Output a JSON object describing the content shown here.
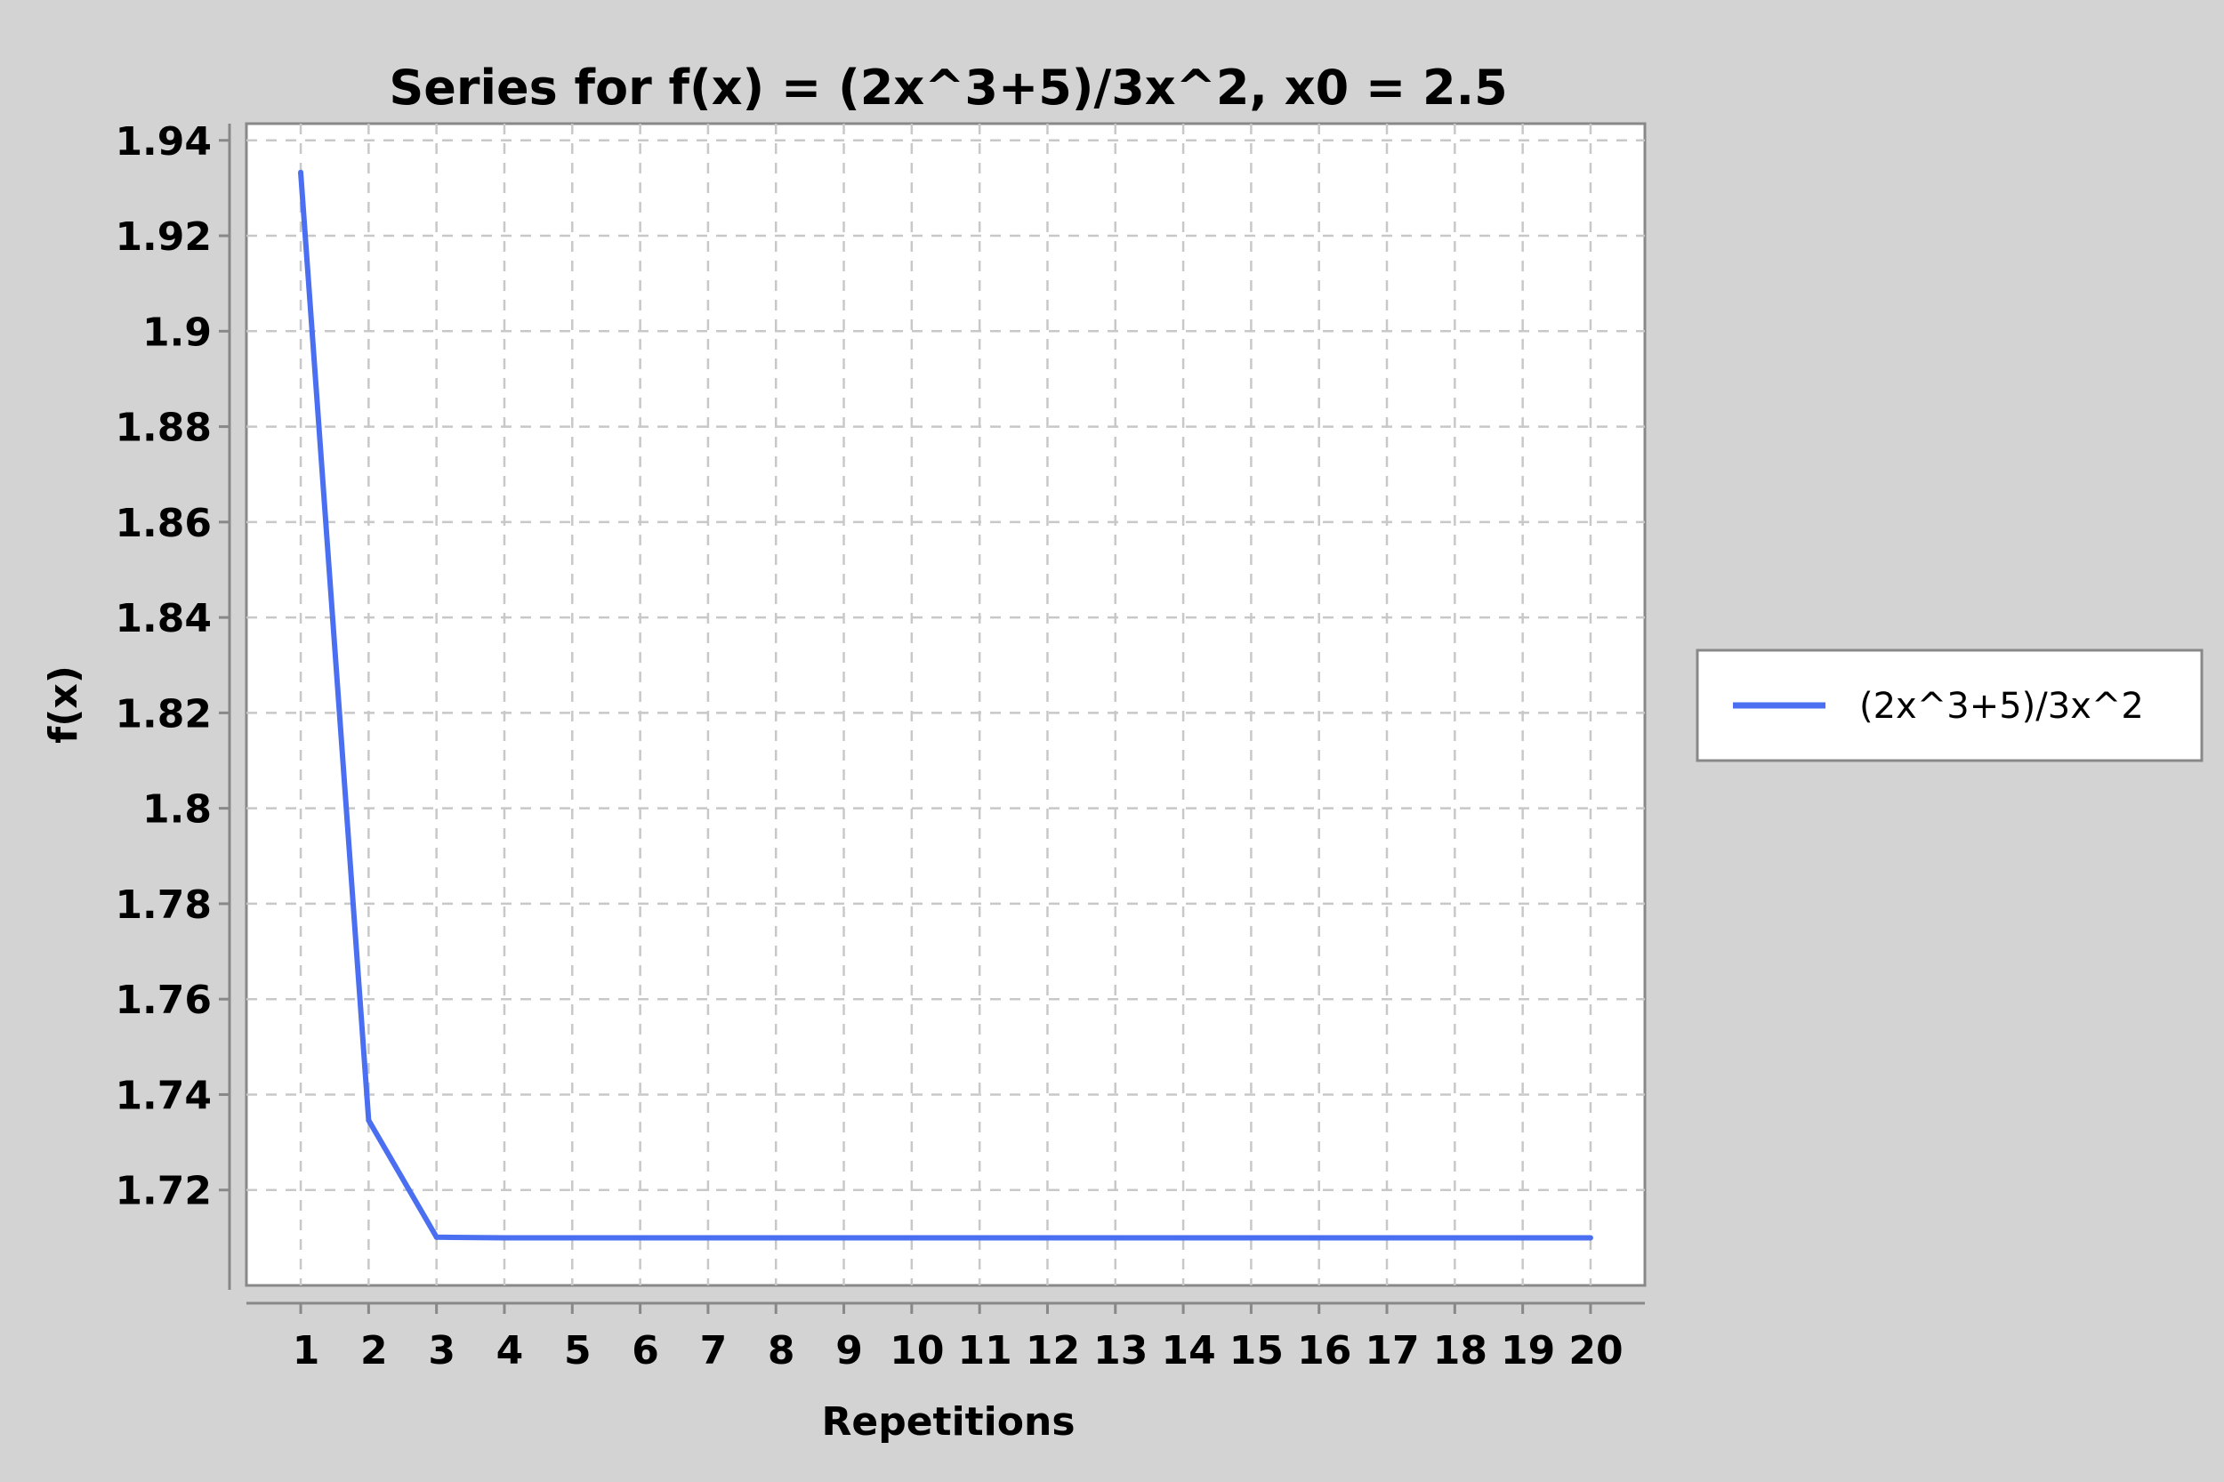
{
  "chart_data": {
    "type": "line",
    "title": "Series for f(x) = (2x^3+5)/3x^2, x0 = 2.5",
    "xlabel": "Repetitions",
    "ylabel": "f(x)",
    "x": [
      1,
      2,
      3,
      4,
      5,
      6,
      7,
      8,
      9,
      10,
      11,
      12,
      13,
      14,
      15,
      16,
      17,
      18,
      19,
      20
    ],
    "series": [
      {
        "name": "(2x^3+5)/3x^2",
        "color": "#4a6ff0",
        "values": [
          1.9333,
          1.7346,
          1.7101,
          1.70998,
          1.70998,
          1.70998,
          1.70998,
          1.70998,
          1.70998,
          1.70998,
          1.70998,
          1.70998,
          1.70998,
          1.70998,
          1.70998,
          1.70998,
          1.70998,
          1.70998,
          1.70998,
          1.70998
        ]
      }
    ],
    "xlim": [
      0.2,
      20.8
    ],
    "ylim": [
      1.7,
      1.9435
    ],
    "yticks": [
      1.72,
      1.74,
      1.76,
      1.78,
      1.8,
      1.82,
      1.84,
      1.86,
      1.88,
      1.9,
      1.92,
      1.94
    ],
    "ytick_labels": [
      "1.72",
      "1.74",
      "1.76",
      "1.78",
      "1.8",
      "1.82",
      "1.84",
      "1.86",
      "1.88",
      "1.9",
      "1.92",
      "1.94"
    ],
    "xtick_labels": [
      "1",
      "2",
      "3",
      "4",
      "5",
      "6",
      "7",
      "8",
      "9",
      "10",
      "11",
      "12",
      "13",
      "14",
      "15",
      "16",
      "17",
      "18",
      "19",
      "20"
    ],
    "grid": true,
    "legend_position": "right"
  }
}
